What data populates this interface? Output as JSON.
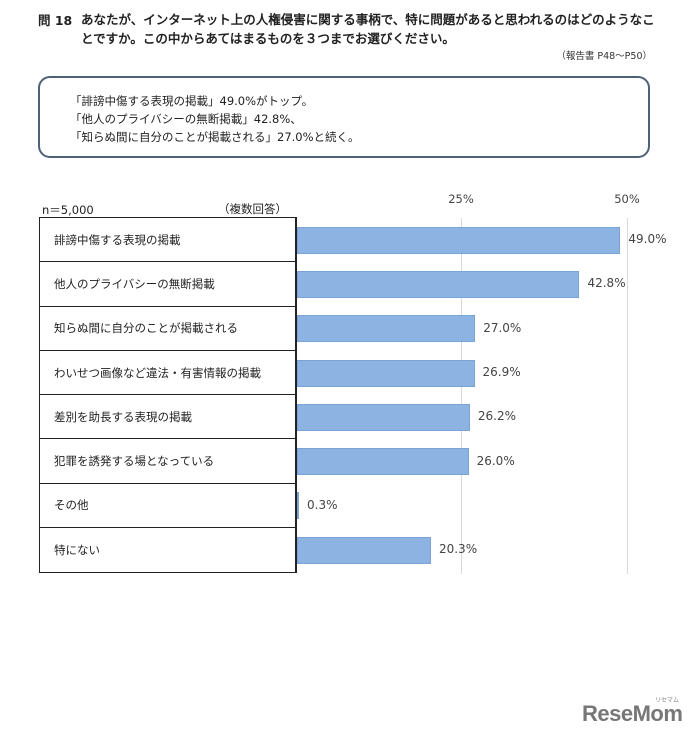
{
  "question": {
    "number": "問 18",
    "text": "あなたが、インターネット上の人権侵害に関する事柄で、特に問題があると思われるのはどのようなことですか。この中からあてはまるものを３つまでお選びください。",
    "reference": "（報告書 P48～P50）"
  },
  "summary": {
    "lines": [
      "「誹謗中傷する表現の掲載」49.0%がトップ。",
      "「他人のプライバシーの無断掲載」42.8%、",
      "「知らぬ間に自分のことが掲載される」27.0%と続く。"
    ]
  },
  "chart_meta": {
    "sample_size": "n＝5,000",
    "response_type": "（複数回答）",
    "ticks": [
      "25%",
      "50%"
    ],
    "bar_color": "#8db3e2"
  },
  "chart_data": {
    "type": "bar",
    "orientation": "horizontal",
    "title": "問18 インターネット上の人権侵害に関する事柄で特に問題があると思われること",
    "categories": [
      "誹謗中傷する表現の掲載",
      "他人のプライバシーの無断掲載",
      "知らぬ間に自分のことが掲載される",
      "わいせつ画像など違法・有害情報の掲載",
      "差別を助長する表現の掲載",
      "犯罪を誘発する場となっている",
      "その他",
      "特にない"
    ],
    "values": [
      49.0,
      42.8,
      27.0,
      26.9,
      26.2,
      26.0,
      0.3,
      20.3
    ],
    "value_labels": [
      "49.0%",
      "42.8%",
      "27.0%",
      "26.9%",
      "26.2%",
      "26.0%",
      "0.3%",
      "20.3%"
    ],
    "xlabel": "",
    "ylabel": "",
    "xlim": [
      0,
      50
    ],
    "xticks": [
      "25%",
      "50%"
    ],
    "grid": true,
    "legend": null,
    "annotations": [
      "n＝5,000",
      "（複数回答）"
    ]
  },
  "branding": {
    "logo": "ReseMom",
    "logo_ruby": "リセマム"
  }
}
